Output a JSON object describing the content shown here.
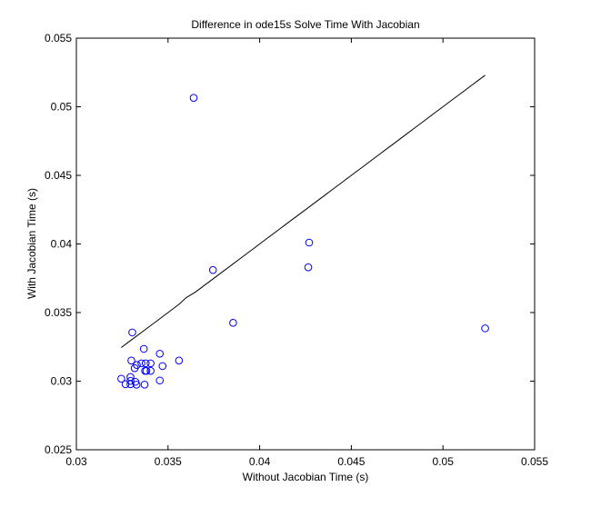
{
  "chart_data": {
    "type": "scatter",
    "title": "Difference in ode15s Solve Time With Jacobian",
    "xlabel": "Without Jacobian Time (s)",
    "ylabel": "With Jacobian Time (s)",
    "xlim": [
      0.03,
      0.055
    ],
    "ylim": [
      0.025,
      0.055
    ],
    "xticks": [
      "0.03",
      "0.035",
      "0.04",
      "0.045",
      "0.05",
      "0.055"
    ],
    "yticks": [
      "0.025",
      "0.03",
      "0.035",
      "0.04",
      "0.045",
      "0.05",
      "0.055"
    ],
    "grid": false,
    "legend": "none",
    "marker": "circle",
    "marker_color": "#0000ff",
    "line_color": "#000000",
    "points": [
      {
        "x": 0.03245,
        "y": 0.03018
      },
      {
        "x": 0.03268,
        "y": 0.02978
      },
      {
        "x": 0.03295,
        "y": 0.02978
      },
      {
        "x": 0.03295,
        "y": 0.03002
      },
      {
        "x": 0.03295,
        "y": 0.0303
      },
      {
        "x": 0.033,
        "y": 0.0315
      },
      {
        "x": 0.03305,
        "y": 0.03355
      },
      {
        "x": 0.03318,
        "y": 0.03095
      },
      {
        "x": 0.03322,
        "y": 0.02995
      },
      {
        "x": 0.03328,
        "y": 0.02975
      },
      {
        "x": 0.0333,
        "y": 0.03118
      },
      {
        "x": 0.03355,
        "y": 0.0313
      },
      {
        "x": 0.03368,
        "y": 0.03235
      },
      {
        "x": 0.03372,
        "y": 0.02975
      },
      {
        "x": 0.03375,
        "y": 0.03075
      },
      {
        "x": 0.03378,
        "y": 0.0313
      },
      {
        "x": 0.03382,
        "y": 0.03075
      },
      {
        "x": 0.03405,
        "y": 0.03075
      },
      {
        "x": 0.03405,
        "y": 0.0313
      },
      {
        "x": 0.03455,
        "y": 0.032
      },
      {
        "x": 0.03455,
        "y": 0.03005
      },
      {
        "x": 0.0347,
        "y": 0.0311
      },
      {
        "x": 0.0356,
        "y": 0.0315
      },
      {
        "x": 0.0364,
        "y": 0.05065
      },
      {
        "x": 0.03745,
        "y": 0.0381
      },
      {
        "x": 0.03855,
        "y": 0.03425
      },
      {
        "x": 0.04265,
        "y": 0.0383
      },
      {
        "x": 0.0427,
        "y": 0.0401
      },
      {
        "x": 0.0523,
        "y": 0.03385
      }
    ],
    "line": {
      "x": [
        0.03245,
        0.0328,
        0.0332,
        0.0336,
        0.034,
        0.0344,
        0.0348,
        0.0352,
        0.0356,
        0.036,
        0.0365,
        0.037,
        0.0375,
        0.038,
        0.0385,
        0.039,
        0.0395,
        0.04,
        0.0405,
        0.041,
        0.0415,
        0.042,
        0.0425,
        0.043,
        0.0435,
        0.044,
        0.0445,
        0.045,
        0.0455,
        0.046,
        0.0465,
        0.047,
        0.0475,
        0.048,
        0.0485,
        0.049,
        0.0495,
        0.05,
        0.0505,
        0.051,
        0.0515,
        0.052,
        0.0523
      ],
      "y": [
        0.03245,
        0.0328,
        0.0332,
        0.0336,
        0.034,
        0.0344,
        0.0348,
        0.0352,
        0.0356,
        0.0361,
        0.0365,
        0.037,
        0.0375,
        0.038,
        0.0385,
        0.039,
        0.0395,
        0.04,
        0.0405,
        0.041,
        0.0415,
        0.042,
        0.0425,
        0.043,
        0.0435,
        0.044,
        0.0445,
        0.045,
        0.0455,
        0.046,
        0.0465,
        0.047,
        0.0475,
        0.048,
        0.0485,
        0.049,
        0.0495,
        0.05,
        0.0505,
        0.051,
        0.0515,
        0.052,
        0.0523
      ]
    }
  }
}
